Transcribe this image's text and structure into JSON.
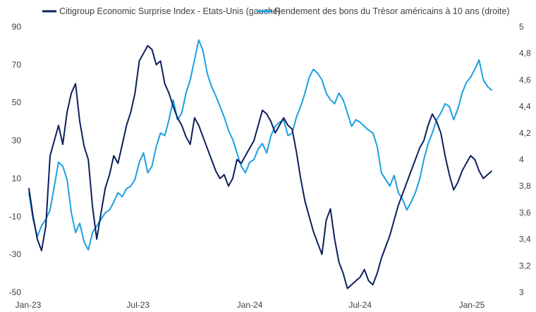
{
  "chart_data": {
    "type": "line",
    "title": "",
    "colors": {
      "citi": "#0d1f5c",
      "treasury": "#1aa0e0"
    },
    "legend": {
      "placement": "top",
      "labels": [
        "Citigroup Economic Surprise Index - Etats-Unis (gauche)",
        "Rendement des bons du Trésor américains à 10 ans (droite)"
      ]
    },
    "x_ticks": [
      "Jan-23",
      "Jul-23",
      "Jan-24",
      "Jul-24",
      "Jan-25"
    ],
    "y_left": {
      "ticks": [
        "90",
        "70",
        "50",
        "30",
        "10",
        "-10",
        "-30",
        "-50"
      ],
      "ylim": [
        -50,
        90
      ]
    },
    "y_right": {
      "ticks": [
        "5",
        "4,8",
        "4,6",
        "4,4",
        "4,2",
        "4",
        "3,8",
        "3,6",
        "3,4",
        "3,2",
        "3"
      ],
      "ylim": [
        3.0,
        5.0
      ]
    },
    "grid": false,
    "series": [
      {
        "name": "Citigroup Economic Surprise Index - Etats-Unis (gauche)",
        "axis": "left",
        "x": [
          "2023-01-02",
          "2023-01-09",
          "2023-01-16",
          "2023-01-23",
          "2023-01-30",
          "2023-02-06",
          "2023-02-13",
          "2023-02-20",
          "2023-02-27",
          "2023-03-06",
          "2023-03-13",
          "2023-03-20",
          "2023-03-27",
          "2023-04-03",
          "2023-04-10",
          "2023-04-17",
          "2023-04-24",
          "2023-05-01",
          "2023-05-08",
          "2023-05-15",
          "2023-05-22",
          "2023-05-29",
          "2023-06-05",
          "2023-06-12",
          "2023-06-19",
          "2023-06-26",
          "2023-07-03",
          "2023-07-10",
          "2023-07-17",
          "2023-07-24",
          "2023-07-31",
          "2023-08-07",
          "2023-08-14",
          "2023-08-21",
          "2023-08-28",
          "2023-09-04",
          "2023-09-11",
          "2023-09-18",
          "2023-09-25",
          "2023-10-02",
          "2023-10-09",
          "2023-10-16",
          "2023-10-23",
          "2023-10-30",
          "2023-11-06",
          "2023-11-13",
          "2023-11-20",
          "2023-11-27",
          "2023-12-04",
          "2023-12-11",
          "2023-12-18",
          "2023-12-25",
          "2024-01-01",
          "2024-01-08",
          "2024-01-15",
          "2024-01-22",
          "2024-01-29",
          "2024-02-05",
          "2024-02-12",
          "2024-02-19",
          "2024-02-26",
          "2024-03-04",
          "2024-03-11",
          "2024-03-18",
          "2024-03-25",
          "2024-04-01",
          "2024-04-08",
          "2024-04-15",
          "2024-04-22",
          "2024-04-29",
          "2024-05-06",
          "2024-05-13",
          "2024-05-20",
          "2024-05-27",
          "2024-06-03",
          "2024-06-10",
          "2024-06-17",
          "2024-06-24",
          "2024-07-01",
          "2024-07-08",
          "2024-07-15",
          "2024-07-22",
          "2024-07-29",
          "2024-08-05",
          "2024-08-12",
          "2024-08-19",
          "2024-08-26",
          "2024-09-02",
          "2024-09-09",
          "2024-09-16",
          "2024-09-23",
          "2024-09-30",
          "2024-10-07",
          "2024-10-14",
          "2024-10-21",
          "2024-10-28",
          "2024-11-04",
          "2024-11-11",
          "2024-11-18",
          "2024-11-25",
          "2024-12-02",
          "2024-12-09",
          "2024-12-16",
          "2024-12-23",
          "2024-12-30",
          "2025-01-06",
          "2025-01-13",
          "2025-01-20",
          "2025-01-27",
          "2025-02-03"
        ],
        "values": [
          5,
          -10,
          -22,
          -28,
          -15,
          22,
          30,
          38,
          28,
          45,
          55,
          60,
          40,
          27,
          20,
          -5,
          -22,
          -8,
          5,
          12,
          22,
          18,
          28,
          38,
          45,
          55,
          72,
          76,
          80,
          78,
          70,
          72,
          60,
          55,
          48,
          42,
          38,
          32,
          28,
          42,
          38,
          32,
          26,
          20,
          14,
          10,
          12,
          6,
          10,
          20,
          18,
          22,
          26,
          30,
          38,
          46,
          44,
          40,
          34,
          38,
          42,
          38,
          36,
          24,
          10,
          -2,
          -10,
          -18,
          -24,
          -30,
          -12,
          -6,
          -22,
          -34,
          -40,
          -48,
          -46,
          -44,
          -42,
          -38,
          -44,
          -46,
          -40,
          -32,
          -26,
          -20,
          -12,
          -4,
          2,
          8,
          14,
          20,
          26,
          30,
          38,
          44,
          40,
          34,
          22,
          12,
          4,
          8,
          14,
          18,
          22,
          20,
          14,
          10,
          12,
          14
        ],
        "color": "#0d1f5c"
      },
      {
        "name": "Rendement des bons du Trésor américains à 10 ans (droite)",
        "axis": "right",
        "x": [
          "2023-01-02",
          "2023-01-09",
          "2023-01-16",
          "2023-01-23",
          "2023-01-30",
          "2023-02-06",
          "2023-02-13",
          "2023-02-20",
          "2023-02-27",
          "2023-03-06",
          "2023-03-13",
          "2023-03-20",
          "2023-03-27",
          "2023-04-03",
          "2023-04-10",
          "2023-04-17",
          "2023-04-24",
          "2023-05-01",
          "2023-05-08",
          "2023-05-15",
          "2023-05-22",
          "2023-05-29",
          "2023-06-05",
          "2023-06-12",
          "2023-06-19",
          "2023-06-26",
          "2023-07-03",
          "2023-07-10",
          "2023-07-17",
          "2023-07-24",
          "2023-07-31",
          "2023-08-07",
          "2023-08-14",
          "2023-08-21",
          "2023-08-28",
          "2023-09-04",
          "2023-09-11",
          "2023-09-18",
          "2023-09-25",
          "2023-10-02",
          "2023-10-09",
          "2023-10-16",
          "2023-10-23",
          "2023-10-30",
          "2023-11-06",
          "2023-11-13",
          "2023-11-20",
          "2023-11-27",
          "2023-12-04",
          "2023-12-11",
          "2023-12-18",
          "2023-12-25",
          "2024-01-01",
          "2024-01-08",
          "2024-01-15",
          "2024-01-22",
          "2024-01-29",
          "2024-02-05",
          "2024-02-12",
          "2024-02-19",
          "2024-02-26",
          "2024-03-04",
          "2024-03-11",
          "2024-03-18",
          "2024-03-25",
          "2024-04-01",
          "2024-04-08",
          "2024-04-15",
          "2024-04-22",
          "2024-04-29",
          "2024-05-06",
          "2024-05-13",
          "2024-05-20",
          "2024-05-27",
          "2024-06-03",
          "2024-06-10",
          "2024-06-17",
          "2024-06-24",
          "2024-07-01",
          "2024-07-08",
          "2024-07-15",
          "2024-07-22",
          "2024-07-29",
          "2024-08-05",
          "2024-08-12",
          "2024-08-19",
          "2024-08-26",
          "2024-09-02",
          "2024-09-09",
          "2024-09-16",
          "2024-09-23",
          "2024-09-30",
          "2024-10-07",
          "2024-10-14",
          "2024-10-21",
          "2024-10-28",
          "2024-11-04",
          "2024-11-11",
          "2024-11-18",
          "2024-11-25",
          "2024-12-02",
          "2024-12-09",
          "2024-12-16",
          "2024-12-23",
          "2024-12-30",
          "2025-01-06",
          "2025-01-13",
          "2025-01-20",
          "2025-01-27",
          "2025-02-03"
        ],
        "values": [
          3.75,
          3.55,
          3.42,
          3.5,
          3.55,
          3.62,
          3.8,
          3.98,
          3.95,
          3.85,
          3.6,
          3.45,
          3.52,
          3.38,
          3.32,
          3.45,
          3.5,
          3.55,
          3.6,
          3.62,
          3.68,
          3.75,
          3.72,
          3.78,
          3.8,
          3.85,
          3.98,
          4.05,
          3.9,
          3.95,
          4.1,
          4.2,
          4.18,
          4.3,
          4.45,
          4.3,
          4.35,
          4.5,
          4.6,
          4.75,
          4.9,
          4.82,
          4.65,
          4.55,
          4.48,
          4.4,
          4.32,
          4.22,
          4.15,
          4.05,
          3.95,
          3.9,
          3.98,
          4.0,
          4.08,
          4.12,
          4.05,
          4.18,
          4.25,
          4.28,
          4.3,
          4.18,
          4.2,
          4.32,
          4.4,
          4.5,
          4.62,
          4.68,
          4.65,
          4.6,
          4.5,
          4.45,
          4.42,
          4.5,
          4.45,
          4.35,
          4.25,
          4.3,
          4.28,
          4.25,
          4.22,
          4.2,
          4.1,
          3.9,
          3.85,
          3.8,
          3.88,
          3.75,
          3.7,
          3.62,
          3.68,
          3.75,
          3.85,
          4.0,
          4.12,
          4.2,
          4.3,
          4.35,
          4.42,
          4.4,
          4.3,
          4.38,
          4.5,
          4.58,
          4.62,
          4.68,
          4.75,
          4.6,
          4.55,
          4.52
        ],
        "color": "#1aa0e0"
      }
    ]
  }
}
